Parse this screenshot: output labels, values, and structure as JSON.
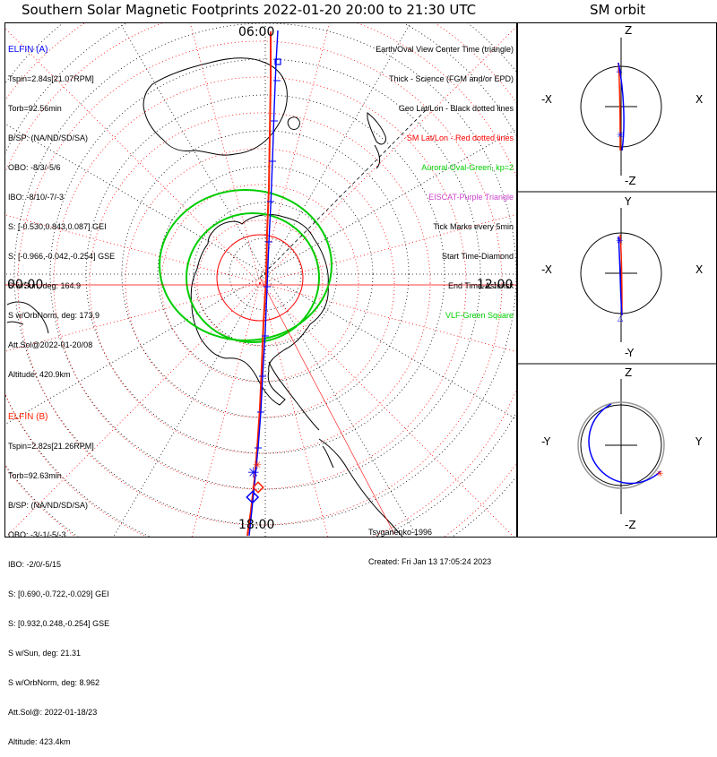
{
  "title": "Southern Solar Magnetic Footprints 2022-01-20 20:00 to 21:30 UTC",
  "orbit_title": "SM orbit",
  "mlt_labels": {
    "top": "06:00",
    "left": "00:00",
    "right": "12:00",
    "bottom": "18:00"
  },
  "elfin_a": {
    "header": "ELFIN (A)",
    "lines": [
      "Tspin=2.84s[21.07RPM]",
      "Torb=92.56min",
      "B/SP: (NA/ND/SD/SA)",
      "OBO: -8/3/-5/6",
      "IBO: -8/10/-7/-3",
      "S: [-0.530,0.843,0.087] GEI",
      "S: [-0.966,-0.042,-0.254] GSE",
      "S w/Sun, deg: 164.9",
      "S w/OrbNorm, deg: 173.9",
      "Att.Sol@2022-01-20/08",
      "Altitude: 420.9km"
    ]
  },
  "elfin_b": {
    "header": "ELFIN (B)",
    "lines": [
      "Tspin=2.82s[21.26RPM]",
      "Torb=92.63min",
      "B/SP: (NA/ND/SD/SA)",
      "OBO: -3/-1/-5/-3",
      "IBO: -2/0/-5/15",
      "S: [0.690,-0.722,-0.029] GEI",
      "S: [0.932,0.248,-0.254] GSE",
      "S w/Sun, deg: 21.31",
      "S w/OrbNorm, deg: 8.962",
      "Att.Sol@: 2022-01-18/23",
      "Altitude: 423.4km"
    ]
  },
  "legend": [
    {
      "text": "Earth/Oval View Center Time (triangle)",
      "color": "#000000"
    },
    {
      "text": "Thick - Science (FGM and/or EPD)",
      "color": "#000000"
    },
    {
      "text": "Geo Lat/Lon - Black dotted lines",
      "color": "#000000"
    },
    {
      "text": "SM Lat/Lon - Red dotted lines",
      "color": "#ff0000"
    },
    {
      "text": "Auroral Oval-Green, kp=2",
      "color": "#00cc00"
    },
    {
      "text": "EISCAT-Purple Triangle",
      "color": "#cc44cc"
    },
    {
      "text": "Tick Marks every 5min",
      "color": "#000000"
    },
    {
      "text": "Start Time-Diamond",
      "color": "#000000"
    },
    {
      "text": "End Time-Asterisk",
      "color": "#000000"
    },
    {
      "text": "VLF-Green Square",
      "color": "#00cc00"
    }
  ],
  "footer": [
    "Tsyganenko-1996",
    "Created: Fri Jan 13 17:05:24 2023"
  ],
  "panels": [
    {
      "top": "Z",
      "bottom": "-Z",
      "left": "-X",
      "right": "X"
    },
    {
      "top": "Y",
      "bottom": "-Y",
      "left": "-X",
      "right": "X"
    },
    {
      "top": "Z",
      "bottom": "-Z",
      "left": "-Y",
      "right": "Y"
    }
  ],
  "colors": {
    "elfin_a": "#0000ff",
    "elfin_b": "#ff2200",
    "oval": "#00cc00",
    "sm_grid": "#ff0000",
    "geo_grid": "#000000"
  }
}
